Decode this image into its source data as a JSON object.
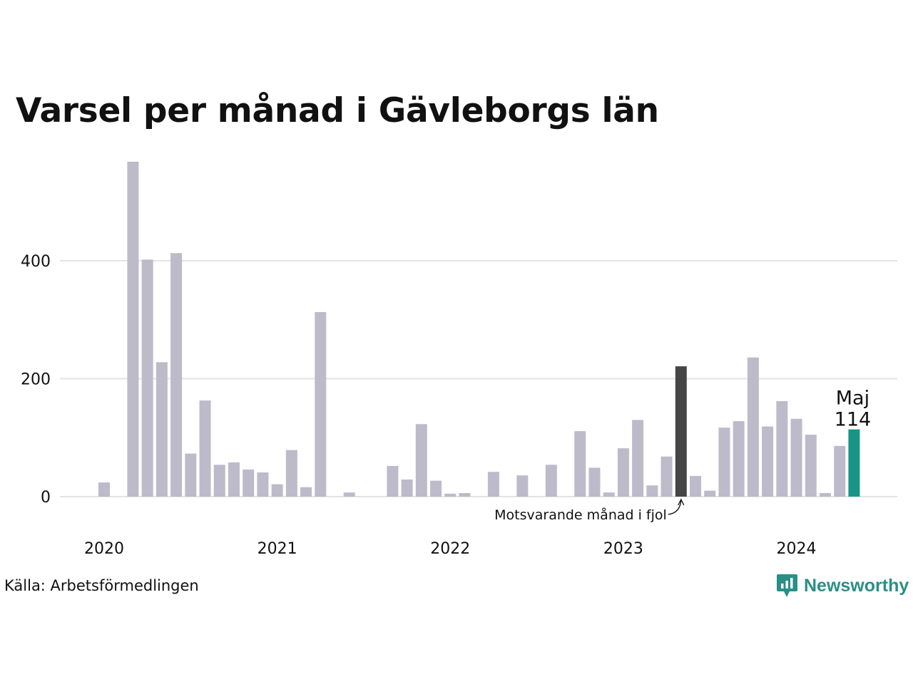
{
  "chart_data": {
    "type": "bar",
    "title": "Varsel per månad i Gävleborgs län",
    "xlabel": "",
    "ylabel": "",
    "ylim": [
      0,
      580
    ],
    "yticks": [
      0,
      200,
      400
    ],
    "grid": true,
    "x_tick_labels": [
      "2020",
      "2021",
      "2022",
      "2023",
      "2024"
    ],
    "categories": [
      "2020-01",
      "2020-02",
      "2020-03",
      "2020-04",
      "2020-05",
      "2020-06",
      "2020-07",
      "2020-08",
      "2020-09",
      "2020-10",
      "2020-11",
      "2020-12",
      "2021-01",
      "2021-02",
      "2021-03",
      "2021-04",
      "2021-05",
      "2021-06",
      "2021-07",
      "2021-08",
      "2021-09",
      "2021-10",
      "2021-11",
      "2021-12",
      "2022-01",
      "2022-02",
      "2022-03",
      "2022-04",
      "2022-05",
      "2022-06",
      "2022-07",
      "2022-08",
      "2022-09",
      "2022-10",
      "2022-11",
      "2022-12",
      "2023-01",
      "2023-02",
      "2023-03",
      "2023-04",
      "2023-05",
      "2023-06",
      "2023-07",
      "2023-08",
      "2023-09",
      "2023-10",
      "2023-11",
      "2023-12",
      "2024-01",
      "2024-02",
      "2024-03",
      "2024-04",
      "2024-05"
    ],
    "values": [
      24,
      0,
      568,
      402,
      228,
      413,
      73,
      163,
      54,
      58,
      46,
      41,
      21,
      79,
      16,
      313,
      0,
      7,
      0,
      0,
      52,
      29,
      123,
      27,
      5,
      6,
      0,
      42,
      0,
      36,
      0,
      54,
      0,
      111,
      49,
      7,
      82,
      130,
      19,
      68,
      221,
      35,
      10,
      117,
      128,
      236,
      119,
      162,
      132,
      105,
      6,
      86,
      114
    ],
    "highlight": [
      {
        "category": "2023-05",
        "role": "previous-year",
        "color": "#454545"
      },
      {
        "category": "2024-05",
        "role": "current",
        "color": "#1a9487"
      }
    ],
    "annotations": {
      "previous_year_label": "Motsvarande månad i fjol",
      "current_month_label": "Maj",
      "current_value_label": "114"
    },
    "colors": {
      "bar": "#bdbbca",
      "grid": "#e3e3e3",
      "previous_year": "#454545",
      "current": "#1a9487"
    }
  },
  "source": "Källa: Arbetsförmedlingen",
  "brand": {
    "name": "Newsworthy",
    "icon": "newsworthy-logo-icon",
    "color": "#2a8f86"
  }
}
